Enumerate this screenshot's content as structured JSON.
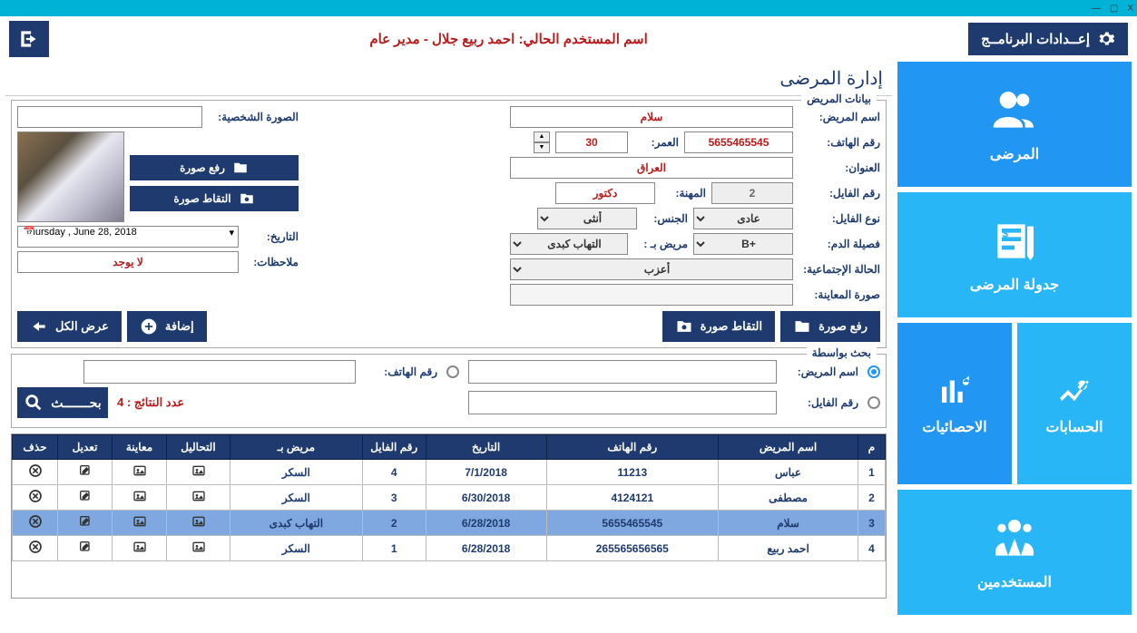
{
  "window": {
    "close": "X",
    "min": "▢",
    "dash": "—"
  },
  "settings_label": "إعــدادات البرنامــج",
  "current_user_text": "اسم المستخدم الحالي: احمد ربيع جلال - مدير عام",
  "sidebar": {
    "patients": "المرضى",
    "schedule": "جدولة المرضى",
    "accounts": "الحسابات",
    "stats": "الاحصائيات",
    "users": "المستخدمين"
  },
  "page_title": "إدارة المرضى",
  "fs_patient_data": "بيانات المريض",
  "labels": {
    "name": "اسم المريض:",
    "phone": "رقم الهاتف:",
    "age": "العمر:",
    "address": "العنوان:",
    "file_no": "رقم الفايل:",
    "job": "المهنة:",
    "file_type": "نوع الفايل:",
    "gender": "الجنس:",
    "date": "التاريخ:",
    "blood": "فصيلة الدم:",
    "sick_with": "مريض بـ :",
    "notes": "ملاحظات:",
    "marital": "الحالة الإجتماعية:",
    "exam_photo": "صورة المعاينة:",
    "personal_photo": "الصورة الشخصية:"
  },
  "values": {
    "name": "سلام",
    "phone": "5655465545",
    "age": "30",
    "address": "العراق",
    "file_no": "2",
    "job": "دكتور",
    "file_type": "عادى",
    "gender": "أنثى",
    "date": "Thursday ,    June    28, 2018",
    "blood": "+B",
    "sick_with": "التهاب كبدى",
    "notes": "لا يوجد",
    "marital": "أعزب"
  },
  "btns": {
    "upload": "رفع صورة",
    "capture": "التقاط صورة",
    "add": "إضافة",
    "show_all": "عرض الكل",
    "search": "بحـــــــث"
  },
  "fs_search": "بحث بواسطة",
  "search_labels": {
    "by_name": "اسم المريض:",
    "by_phone": "رقم الهاتف:",
    "by_file": "رقم الفايل:"
  },
  "result_count": "عدد النتائج : 4",
  "table": {
    "headers": {
      "idx": "م",
      "name": "اسم المريض",
      "phone": "رقم الهاتف",
      "date": "التاريخ",
      "file": "رقم الفايل",
      "sick": "مريض بـ",
      "tests": "التحاليل",
      "preview": "معاينة",
      "edit": "تعديل",
      "del": "حذف"
    },
    "rows": [
      {
        "idx": "1",
        "name": "عباس",
        "phone": "11213",
        "date": "7/1/2018",
        "file": "4",
        "sick": "السكر",
        "sel": false
      },
      {
        "idx": "2",
        "name": "مصطفى",
        "phone": "4124121",
        "date": "6/30/2018",
        "file": "3",
        "sick": "السكر",
        "sel": false
      },
      {
        "idx": "3",
        "name": "سلام",
        "phone": "5655465545",
        "date": "6/28/2018",
        "file": "2",
        "sick": "التهاب كبدى",
        "sel": true
      },
      {
        "idx": "4",
        "name": "احمد ربيع",
        "phone": "265565656565",
        "date": "6/28/2018",
        "file": "1",
        "sick": "السكر",
        "sel": false
      }
    ]
  }
}
